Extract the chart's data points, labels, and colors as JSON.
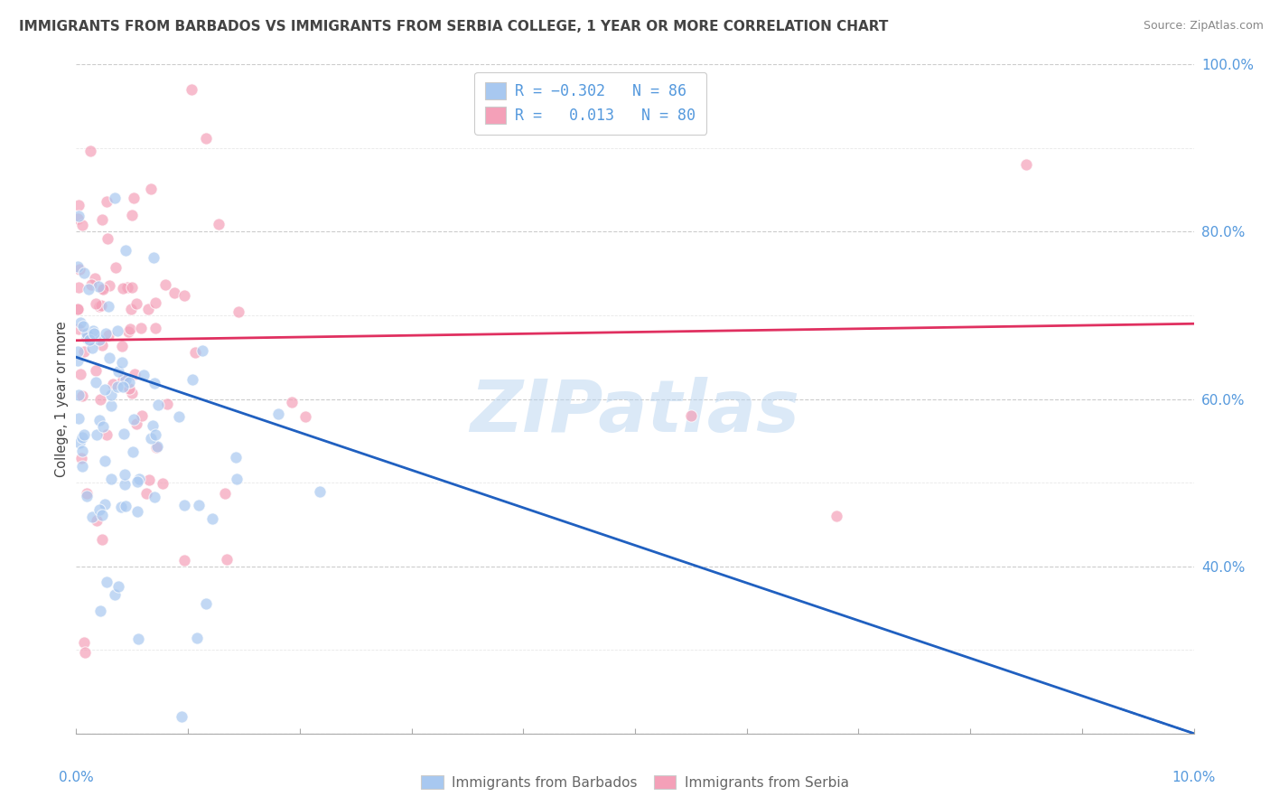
{
  "title": "IMMIGRANTS FROM BARBADOS VS IMMIGRANTS FROM SERBIA COLLEGE, 1 YEAR OR MORE CORRELATION CHART",
  "source": "Source: ZipAtlas.com",
  "ylabel": "College, 1 year or more",
  "xmin": 0.0,
  "xmax": 10.0,
  "ymin": 20.0,
  "ymax": 100.0,
  "yticks_right": [
    40.0,
    60.0,
    80.0,
    100.0
  ],
  "R_barbados": -0.302,
  "N_barbados": 86,
  "R_serbia": 0.013,
  "N_serbia": 80,
  "color_barbados": "#a8c8f0",
  "color_serbia": "#f4a0b8",
  "line_color_barbados": "#2060c0",
  "line_color_serbia": "#e03060",
  "watermark_text": "ZIPatlas",
  "background_color": "#ffffff",
  "grid_color": "#cccccc",
  "title_color": "#444444",
  "axis_label_color": "#5599dd",
  "legend_r_color": "#5599dd",
  "seed": 1234
}
